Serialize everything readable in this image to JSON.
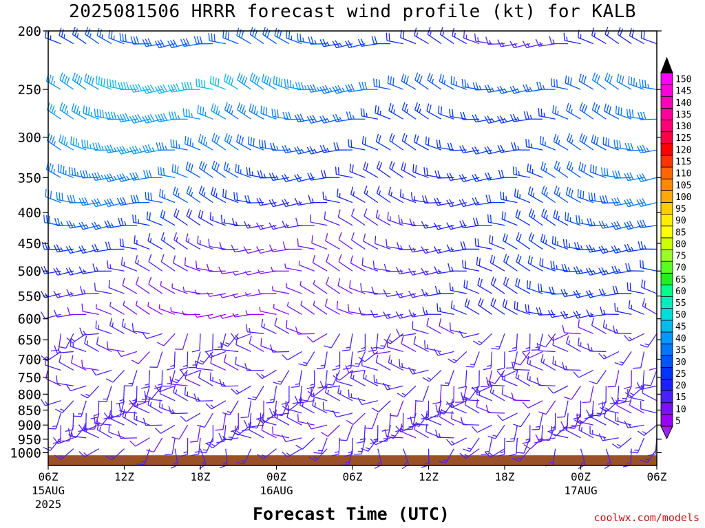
{
  "page": {
    "title": "2025081506 HRRR forecast wind profile (kt) for KALB",
    "xlabel": "Forecast Time (UTC)",
    "credit": "coolwx.com/models"
  },
  "chart_data": {
    "type": "wind_barb_time_height",
    "title": "2025081506 HRRR forecast wind profile (kt) for KALB",
    "xlabel": "Forecast Time (UTC)",
    "ylabel": "",
    "x_range_hours": [
      0,
      48
    ],
    "x_ticks": [
      {
        "hour": 0,
        "label": "06Z",
        "sub1": "15AUG",
        "sub2": "2025"
      },
      {
        "hour": 6,
        "label": "12Z",
        "sub1": "",
        "sub2": ""
      },
      {
        "hour": 12,
        "label": "18Z",
        "sub1": "",
        "sub2": ""
      },
      {
        "hour": 18,
        "label": "00Z",
        "sub1": "16AUG",
        "sub2": ""
      },
      {
        "hour": 24,
        "label": "06Z",
        "sub1": "",
        "sub2": ""
      },
      {
        "hour": 30,
        "label": "12Z",
        "sub1": "",
        "sub2": ""
      },
      {
        "hour": 36,
        "label": "18Z",
        "sub1": "",
        "sub2": ""
      },
      {
        "hour": 42,
        "label": "00Z",
        "sub1": "17AUG",
        "sub2": ""
      },
      {
        "hour": 48,
        "label": "06Z",
        "sub1": "",
        "sub2": ""
      }
    ],
    "y_scale": "log",
    "y_range_hPa": [
      200,
      1050
    ],
    "y_ticks": [
      200,
      250,
      300,
      350,
      400,
      450,
      500,
      550,
      600,
      650,
      700,
      750,
      800,
      850,
      900,
      950,
      1000
    ],
    "colorbar": {
      "unit": "kt",
      "labels": [
        5,
        10,
        15,
        20,
        25,
        30,
        35,
        40,
        45,
        50,
        55,
        60,
        65,
        70,
        75,
        80,
        85,
        90,
        95,
        100,
        105,
        110,
        115,
        120,
        125,
        130,
        135,
        140,
        145,
        150
      ],
      "colors": [
        "#9a00ff",
        "#7a10ff",
        "#4a20ff",
        "#1a20ff",
        "#0033ff",
        "#0055ff",
        "#0077ff",
        "#0099ff",
        "#00bbee",
        "#00dddd",
        "#00eebb",
        "#00ff88",
        "#22ee22",
        "#55ff22",
        "#99ff22",
        "#ccff00",
        "#ffff00",
        "#ffee00",
        "#ffcc00",
        "#ffaa00",
        "#ff8800",
        "#ff6600",
        "#ff3300",
        "#ff0000",
        "#ff0044",
        "#ff0077",
        "#ff0099",
        "#ff00bb",
        "#ff00dd",
        "#ff00ff"
      ],
      "under_color": "#a020f0",
      "over_color": "#000000"
    },
    "profile": {
      "time_step_hours": 1,
      "note_levels_hPa": [
        210,
        250,
        280,
        315,
        350,
        385,
        420,
        460,
        500,
        545,
        590,
        635,
        680,
        730,
        775,
        820,
        860,
        900,
        945
      ],
      "upper_dir_deg": 280,
      "upper_speed_kt": [
        22,
        34,
        30,
        28,
        26,
        24,
        20,
        17,
        15,
        13,
        11,
        10,
        10,
        10,
        12,
        12,
        11,
        10,
        9
      ],
      "low_level_speed_kt": 14
    },
    "terrain_hPa": 1010,
    "terrain_color": "#9b5128"
  }
}
